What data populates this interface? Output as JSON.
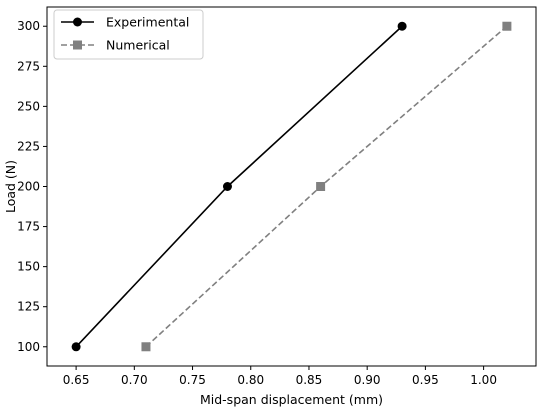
{
  "chart_data": {
    "type": "line",
    "xlabel": "Mid-span displacement (mm)",
    "ylabel": "Load (N)",
    "xlim": [
      0.625,
      1.045
    ],
    "ylim": [
      88,
      312
    ],
    "xticks": [
      0.65,
      0.7,
      0.75,
      0.8,
      0.85,
      0.9,
      0.95,
      1.0
    ],
    "xtick_labels": [
      "0.65",
      "0.70",
      "0.75",
      "0.80",
      "0.85",
      "0.90",
      "0.95",
      "1.00"
    ],
    "yticks": [
      100,
      125,
      150,
      175,
      200,
      225,
      250,
      275,
      300
    ],
    "ytick_labels": [
      "100",
      "125",
      "150",
      "175",
      "200",
      "225",
      "250",
      "275",
      "300"
    ],
    "grid": false,
    "legend_position": "top-left",
    "series": [
      {
        "name": "Experimental",
        "x": [
          0.65,
          0.78,
          0.93
        ],
        "y": [
          100,
          200,
          300
        ],
        "color": "#000000",
        "line_style": "solid",
        "marker": "circle"
      },
      {
        "name": "Numerical",
        "x": [
          0.71,
          0.86,
          1.02
        ],
        "y": [
          100,
          200,
          300
        ],
        "color": "#808080",
        "line_style": "dashed",
        "marker": "square"
      }
    ]
  }
}
